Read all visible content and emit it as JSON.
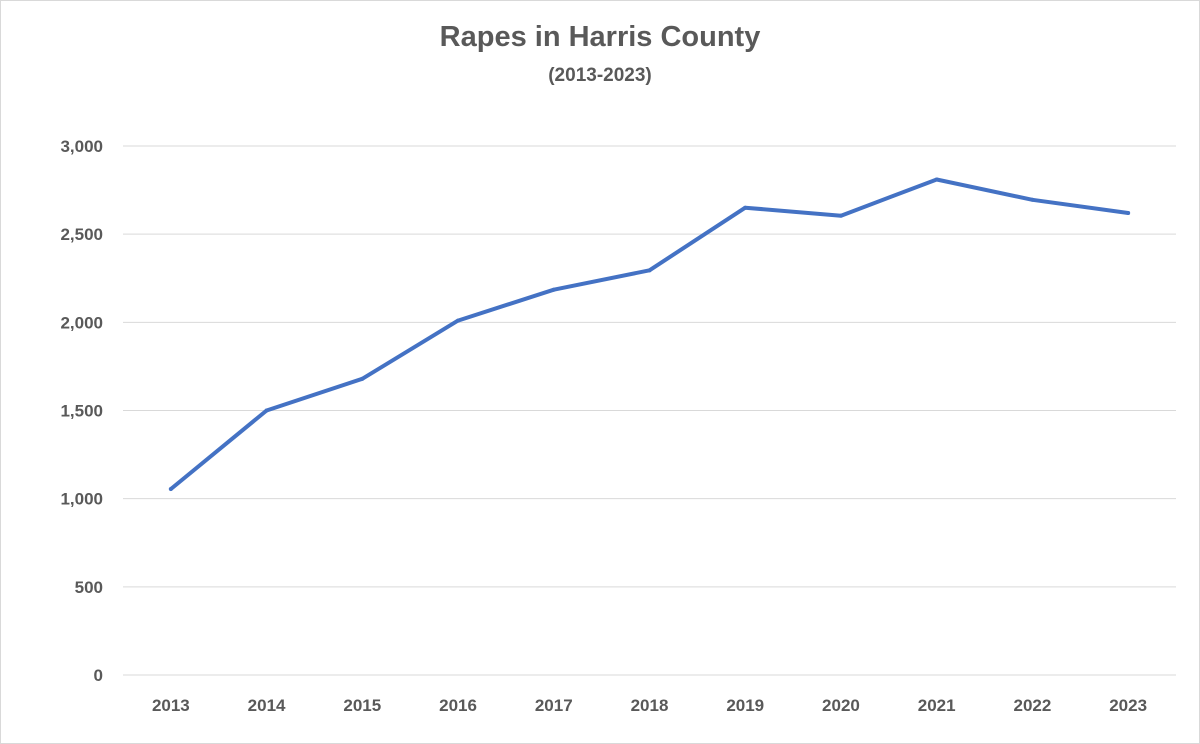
{
  "chart_data": {
    "type": "line",
    "title": "Rapes in Harris County",
    "subtitle": "(2013-2023)",
    "categories": [
      "2013",
      "2014",
      "2015",
      "2016",
      "2017",
      "2018",
      "2019",
      "2020",
      "2021",
      "2022",
      "2023"
    ],
    "series": [
      {
        "values": [
          1055,
          1500,
          1680,
          2010,
          2185,
          2295,
          2650,
          2605,
          2810,
          2695,
          2620
        ]
      }
    ],
    "ylim": [
      0,
      3000
    ],
    "yticks": [
      0,
      500,
      1000,
      1500,
      2000,
      2500,
      3000
    ],
    "ytick_labels": [
      "0",
      "500",
      "1,000",
      "1,500",
      "2,000",
      "2,500",
      "3,000"
    ],
    "grid": "horizontal",
    "legend": "none",
    "line_color": "#4472c4",
    "grid_color": "#d9d9d9",
    "text_color": "#595959"
  }
}
